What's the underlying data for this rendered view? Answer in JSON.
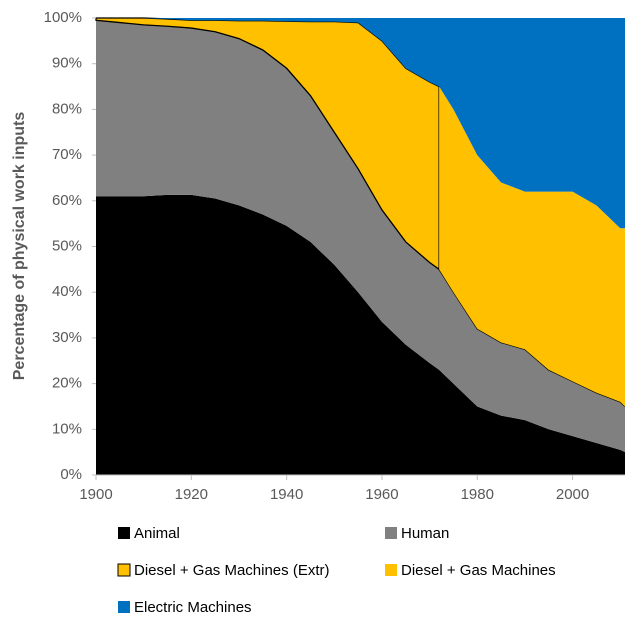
{
  "chart_data": {
    "type": "stacked_area",
    "ylabel": "Percentage of physical work inputs",
    "x": [
      1900,
      1905,
      1910,
      1915,
      1920,
      1925,
      1930,
      1935,
      1940,
      1945,
      1950,
      1955,
      1960,
      1965,
      1970,
      1972,
      1972,
      1975,
      1980,
      1985,
      1990,
      1995,
      2000,
      2005,
      2010,
      2011
    ],
    "xlim": [
      1900,
      2011
    ],
    "xticks": [
      1900,
      1920,
      1940,
      1960,
      1980,
      2000
    ],
    "ylim": [
      0,
      100
    ],
    "yticks": [
      {
        "value": 0,
        "label": "0%"
      },
      {
        "value": 10,
        "label": "10%"
      },
      {
        "value": 20,
        "label": "20%"
      },
      {
        "value": 30,
        "label": "30%"
      },
      {
        "value": 40,
        "label": "40%"
      },
      {
        "value": 50,
        "label": "50%"
      },
      {
        "value": 60,
        "label": "60%"
      },
      {
        "value": 70,
        "label": "70%"
      },
      {
        "value": 80,
        "label": "80%"
      },
      {
        "value": 90,
        "label": "90%"
      },
      {
        "value": 100,
        "label": "100%"
      }
    ],
    "grid": false,
    "legend": "bottom",
    "series": [
      {
        "name": "Animal",
        "color": "#000000",
        "values": [
          61,
          61,
          61,
          61.3,
          61.3,
          60.5,
          59,
          57,
          54.5,
          51,
          46,
          40,
          33.5,
          28.5,
          24.5,
          23,
          23,
          20,
          15,
          13,
          12,
          10,
          8.5,
          7,
          5.5,
          5
        ]
      },
      {
        "name": "Human",
        "color": "#808080",
        "values": [
          38.5,
          38,
          37.5,
          36.9,
          36.5,
          36.5,
          36.5,
          36,
          34.5,
          32,
          29,
          27,
          24.5,
          22.5,
          22,
          22,
          22,
          20,
          17,
          16,
          15.5,
          13,
          12,
          11,
          10.5,
          10
        ]
      },
      {
        "name": "Diesel + Gas Machines (Extr)",
        "color": "#ffc000",
        "edgecolor": "#000000",
        "values": [
          0.5,
          1,
          1.5,
          1.6,
          1.7,
          2.5,
          3.9,
          6.4,
          10.3,
          16.2,
          24.2,
          32,
          37,
          38,
          39.5,
          40,
          0,
          0,
          0,
          0,
          0,
          0,
          0,
          0,
          0,
          0
        ]
      },
      {
        "name": "Diesel + Gas Machines",
        "color": "#ffc000",
        "values": [
          0,
          0,
          0,
          0,
          0,
          0,
          0,
          0,
          0,
          0,
          0,
          0,
          0,
          0,
          0,
          0,
          40,
          40,
          38,
          35,
          34.5,
          39,
          41.5,
          41,
          38,
          39
        ]
      },
      {
        "name": "Electric Machines",
        "color": "#0070c0",
        "values": [
          0,
          0,
          0,
          0.2,
          0.5,
          0.5,
          0.6,
          0.6,
          0.7,
          0.8,
          0.8,
          1,
          5,
          11,
          14,
          15,
          15,
          20,
          30,
          36,
          38,
          38,
          38,
          41,
          46,
          46
        ]
      }
    ]
  }
}
